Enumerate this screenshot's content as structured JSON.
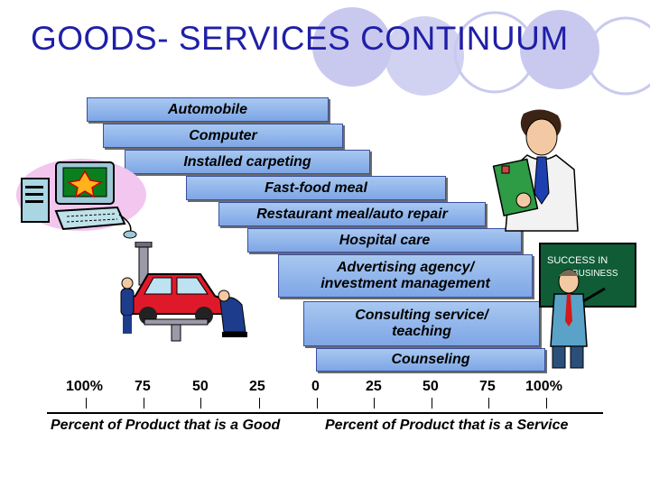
{
  "title": "GOODS- SERVICES CONTINUUM",
  "bars": [
    {
      "label": "Automobile"
    },
    {
      "label": "Computer"
    },
    {
      "label": "Installed carpeting"
    },
    {
      "label": "Fast-food meal"
    },
    {
      "label": "Restaurant meal/auto repair"
    },
    {
      "label": "Hospital care"
    },
    {
      "label": "Advertising agency/\ninvestment management"
    },
    {
      "label": "Consulting service/\nteaching"
    },
    {
      "label": "Counseling"
    }
  ],
  "ticks": [
    "100%",
    "75",
    "50",
    "25",
    "0",
    "25",
    "50",
    "75",
    "100%"
  ],
  "axis": {
    "left_label": "Percent of Product that is a Good",
    "right_label": "Percent of Product that is a Service"
  },
  "colors": {
    "title": "#1f1fa8",
    "bar": "#8fb3ea",
    "circles": "#c8c8f0"
  },
  "clipart": [
    "computer-clipart",
    "businessman-clipart",
    "auto-repair-clipart",
    "teacher-clipart"
  ]
}
